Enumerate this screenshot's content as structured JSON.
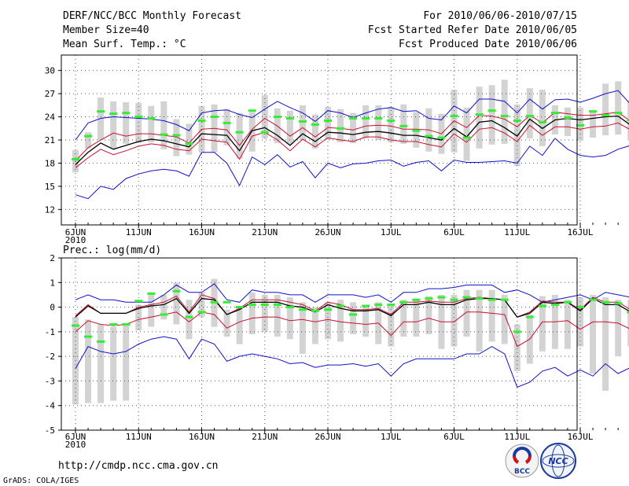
{
  "header": {
    "title": "DERF/NCC/BCC Monthly Forecast",
    "member_size": "Member Size=40",
    "variable1": "Mean Surf. Temp.: °C",
    "period": "For 2010/06/06-2010/07/15",
    "fcst_started": "Fcst Started Refer Date 2010/06/05",
    "fcst_produced": "Fcst Produced Date 2010/06/06"
  },
  "footer": {
    "url": "http://cmdp.ncc.cma.gov.cn",
    "grads": "GrADS: COLA/IGES",
    "logo1_text": "BCC",
    "logo2_text": "NCC"
  },
  "colors": {
    "upper": "#1010cc",
    "lower": "#1010cc",
    "q_upper": "#c8102e",
    "q_lower": "#c8102e",
    "mean": "#000000",
    "box": "#d3d3d3",
    "marker": "#33ee33",
    "grid": "#555555"
  },
  "chart_data": [
    {
      "type": "line",
      "title": "Mean Surf. Temp.: °C",
      "xlabel": "",
      "ylabel": "°C",
      "ylim": [
        10,
        32
      ],
      "yticks": [
        30,
        27,
        24,
        21,
        18,
        15,
        12
      ],
      "xtick_labels": [
        "6JUN",
        "11JUN",
        "16JUN",
        "21JUN",
        "26JUN",
        "1JUL",
        "6JUL",
        "11JUL",
        "16JUL"
      ],
      "xtick_days": [
        1,
        6,
        11,
        16,
        21,
        26,
        31,
        36,
        41
      ],
      "year_label": "2010",
      "series": [
        {
          "name": "upper",
          "values": [
            21,
            23.2,
            23.8,
            24,
            23.9,
            23.8,
            23.7,
            23.5,
            23,
            22.2,
            24.5,
            24.8,
            24.9,
            24.3,
            23.9,
            25,
            26,
            25.2,
            24.5,
            23.4,
            24.8,
            24.5,
            23.9,
            24.5,
            25,
            25.2,
            24.7,
            24.8,
            23.8,
            23.6,
            25.4,
            24.5,
            26.3,
            26.3,
            26,
            24.5,
            26.3,
            25,
            26.2,
            26.3,
            25.9,
            26.4,
            27,
            27.4,
            25.6,
            26.1,
            27.2
          ]
        },
        {
          "name": "q_upper",
          "values": [
            18.3,
            20,
            21,
            21.9,
            21.5,
            21.8,
            21.8,
            21.6,
            21.4,
            20.6,
            22.4,
            22.5,
            22.3,
            20.3,
            22.4,
            23.8,
            22.8,
            21.5,
            22.6,
            21.4,
            22.6,
            22.5,
            22.3,
            22.8,
            22.9,
            22.8,
            22.4,
            22.4,
            22.3,
            21.8,
            23.5,
            22.6,
            24.2,
            24.1,
            23.7,
            22.7,
            24.2,
            23.2,
            24.6,
            24.4,
            24.2,
            24.2,
            24.4,
            24.6,
            23.4,
            24.3,
            25.2
          ]
        },
        {
          "name": "mean",
          "values": [
            17.8,
            19.4,
            20.6,
            19.8,
            20.3,
            20.8,
            21.1,
            20.9,
            20.5,
            20.1,
            21.8,
            21.7,
            21.6,
            19.6,
            22.2,
            22.6,
            21.6,
            20.3,
            21.8,
            20.8,
            22,
            21.9,
            21.7,
            22,
            22.1,
            21.9,
            21.6,
            21.6,
            21.3,
            21,
            22.5,
            21.4,
            23.3,
            23.5,
            22.6,
            21.5,
            23.7,
            22.5,
            23.6,
            23.8,
            23.6,
            23.8,
            24,
            24.1,
            22.9,
            23.6,
            24.4
          ]
        },
        {
          "name": "q_lower",
          "values": [
            17.4,
            18.7,
            19.8,
            19.1,
            19.6,
            20.2,
            20.5,
            20.3,
            19.8,
            19.6,
            21.1,
            20.9,
            20.7,
            18.5,
            21.5,
            22,
            21,
            19.6,
            21.1,
            20.1,
            21.3,
            21,
            20.8,
            21.4,
            21.4,
            21,
            20.8,
            20.8,
            20.4,
            20.1,
            21.8,
            20.7,
            22.4,
            22.6,
            21.9,
            20.8,
            22.9,
            21.6,
            22.7,
            22.7,
            22.4,
            22.7,
            22.8,
            23.2,
            22.3,
            22.8,
            23.7
          ]
        },
        {
          "name": "lower",
          "values": [
            13.9,
            13.4,
            15,
            14.6,
            16,
            16.6,
            17,
            17.2,
            17,
            16.3,
            19.4,
            19.4,
            18,
            15.1,
            18.8,
            17.8,
            19.1,
            17.5,
            18.2,
            16.1,
            18,
            17.4,
            17.9,
            18,
            18.3,
            18.4,
            17.6,
            18.1,
            18.3,
            17,
            18.4,
            18.1,
            18.1,
            18.2,
            18.3,
            18,
            20.2,
            19,
            21.2,
            19.8,
            19,
            18.8,
            19,
            19.8,
            20.3,
            21,
            21.2
          ]
        },
        {
          "name": "box_high",
          "values": [
            19.7,
            22,
            26.5,
            26,
            25.9,
            25.8,
            25.4,
            26,
            23.7,
            23.1,
            25.4,
            25.6,
            25,
            24.5,
            24.6,
            26.8,
            25.1,
            24.8,
            25.5,
            24.3,
            25.3,
            25,
            24.5,
            25.5,
            25.5,
            25.3,
            25.6,
            24.6,
            25.1,
            24.4,
            27.5,
            25.2,
            27.9,
            28.1,
            28.8,
            25.6,
            27.7,
            27.5,
            25.5,
            25.2,
            25.2,
            24.6,
            28.3,
            28.6,
            26.1,
            27,
            28.2
          ]
        },
        {
          "name": "box_low",
          "values": [
            16.8,
            19.9,
            21,
            19.9,
            20.5,
            20.6,
            20.7,
            19.8,
            18.9,
            19.1,
            19.4,
            19.4,
            20.3,
            18.6,
            19.5,
            21.2,
            20.6,
            20.5,
            21,
            19.9,
            21,
            20.7,
            20.6,
            21.2,
            21,
            20.7,
            20.5,
            20,
            19.5,
            19.2,
            19.4,
            18.3,
            19.9,
            20.4,
            20.5,
            17.6,
            21.2,
            20.2,
            21.7,
            21.5,
            20.9,
            21.3,
            21.6,
            21.7,
            20.9,
            21.2,
            21.9
          ]
        },
        {
          "name": "marker",
          "values": [
            18.5,
            21.5,
            24.7,
            24.4,
            24.5,
            24,
            23.8,
            21.7,
            21.6,
            20.5,
            23.5,
            24,
            23.2,
            22,
            24.8,
            22,
            24,
            23.8,
            23.4,
            23,
            23.5,
            22.5,
            23.8,
            23.8,
            23.8,
            23.5,
            22.8,
            22.2,
            21.5,
            21.3,
            24.1,
            21.3,
            24.3,
            24.8,
            24.1,
            23.5,
            24.1,
            23.3,
            24.5,
            23.9,
            22.9,
            24.7,
            24.2,
            24.5,
            23.6,
            24.5,
            25.3
          ]
        }
      ]
    },
    {
      "type": "line",
      "title": "Prec.: log(mm/d)",
      "xlabel": "",
      "ylabel": "log(mm/d)",
      "ylim": [
        -5,
        2
      ],
      "yticks": [
        2,
        1,
        0,
        -1,
        -2,
        -3,
        -4,
        -5
      ],
      "xtick_labels": [
        "6JUN",
        "11JUN",
        "16JUN",
        "21JUN",
        "26JUN",
        "1JUL",
        "6JUL",
        "11JUL",
        "16JUL"
      ],
      "xtick_days": [
        1,
        6,
        11,
        16,
        21,
        26,
        31,
        36,
        41
      ],
      "year_label": "2010",
      "series": [
        {
          "name": "upper",
          "values": [
            0.3,
            0.5,
            0.3,
            0.3,
            0.2,
            0.2,
            0.2,
            0.5,
            0.9,
            0.6,
            0.6,
            0.95,
            0.3,
            0.2,
            0.7,
            0.6,
            0.6,
            0.5,
            0.5,
            0.2,
            0.5,
            0.5,
            0.5,
            0.4,
            0.5,
            0.2,
            0.6,
            0.6,
            0.75,
            0.75,
            0.8,
            0.9,
            0.9,
            0.9,
            0.6,
            0.7,
            0.5,
            0.2,
            0.3,
            0.4,
            0.5,
            0.3,
            0.6,
            0.5,
            0.4,
            0.7,
            0.6
          ]
        },
        {
          "name": "q_upper",
          "values": [
            -0.35,
            0.1,
            -0.25,
            -0.25,
            -0.25,
            0,
            0.1,
            0.2,
            0.45,
            -0.2,
            0.5,
            0.35,
            -0.3,
            -0.05,
            0.3,
            0.3,
            0.3,
            0.2,
            0.1,
            -0.15,
            0.2,
            0.1,
            -0.1,
            -0.1,
            -0.05,
            -0.3,
            0.2,
            0.2,
            0.25,
            0.2,
            0.2,
            0.35,
            0.4,
            0.35,
            0.3,
            -0.4,
            -0.2,
            0.25,
            0.2,
            0.2,
            -0.1,
            0.4,
            0.2,
            0.2,
            -0.1,
            0.2,
            0.15
          ]
        },
        {
          "name": "mean",
          "values": [
            -0.4,
            0.05,
            -0.25,
            -0.25,
            -0.25,
            -0.05,
            0.05,
            0.1,
            0.35,
            -0.25,
            0.35,
            0.3,
            -0.3,
            -0.1,
            0.2,
            0.2,
            0.2,
            0.05,
            0,
            -0.2,
            0.1,
            -0.05,
            -0.15,
            -0.15,
            -0.1,
            -0.35,
            0.1,
            0.1,
            0.2,
            0.1,
            0.1,
            0.3,
            0.35,
            0.35,
            0.3,
            -0.4,
            -0.25,
            0.2,
            0.15,
            0.2,
            -0.15,
            0.35,
            0.1,
            0.1,
            -0.2,
            0.2,
            0.1
          ]
        },
        {
          "name": "q_lower",
          "values": [
            -1,
            -0.55,
            -0.7,
            -0.75,
            -0.7,
            -0.5,
            -0.4,
            -0.3,
            -0.2,
            -0.6,
            -0.2,
            -0.3,
            -0.85,
            -0.6,
            -0.45,
            -0.4,
            -0.4,
            -0.55,
            -0.5,
            -0.6,
            -0.5,
            -0.6,
            -0.65,
            -0.7,
            -0.65,
            -1.15,
            -0.6,
            -0.6,
            -0.45,
            -0.6,
            -0.6,
            -0.2,
            -0.2,
            -0.25,
            -0.3,
            -1.6,
            -1.3,
            -0.6,
            -0.6,
            -0.55,
            -0.9,
            -0.6,
            -0.6,
            -0.65,
            -0.9,
            -0.6,
            -0.65
          ]
        },
        {
          "name": "lower",
          "values": [
            -2.5,
            -1.6,
            -1.8,
            -1.9,
            -1.8,
            -1.5,
            -1.3,
            -1.2,
            -1.3,
            -2.1,
            -1.3,
            -1.5,
            -2.2,
            -2.0,
            -1.9,
            -2.0,
            -2.1,
            -2.3,
            -2.25,
            -2.45,
            -2.35,
            -2.35,
            -2.3,
            -2.4,
            -2.3,
            -2.8,
            -2.3,
            -2.1,
            -2.1,
            -2.1,
            -2.1,
            -1.9,
            -1.9,
            -1.6,
            -1.9,
            -3.25,
            -3.05,
            -2.6,
            -2.45,
            -2.8,
            -2.55,
            -2.8,
            -2.3,
            -2.7,
            -2.45,
            -2.5,
            -2.65
          ]
        },
        {
          "name": "box_high",
          "values": [
            -0.4,
            -0.5,
            -0.7,
            -0.8,
            -0.65,
            0.1,
            0.6,
            0.5,
            1.0,
            0.3,
            0.6,
            1.15,
            -0.1,
            0.05,
            0.6,
            0.5,
            0.5,
            0.4,
            0.2,
            0,
            0.2,
            0.3,
            0.2,
            0.1,
            0.2,
            0.1,
            0.3,
            0.3,
            0.45,
            0.5,
            0.5,
            0.7,
            0.7,
            0.7,
            0.5,
            -0.7,
            -0.3,
            0.45,
            0.5,
            0.3,
            0.4,
            0.5,
            0.4,
            0.3,
            0.3,
            0.95,
            0.7
          ]
        },
        {
          "name": "box_low",
          "values": [
            -3.95,
            -3.9,
            -3.9,
            -3.8,
            -3.8,
            -0.95,
            -0.8,
            -0.5,
            -0.7,
            -1.3,
            -0.4,
            -0.8,
            -1.2,
            -1.5,
            -1.1,
            -1.0,
            -1.2,
            -1.3,
            -1.9,
            -1.5,
            -1.3,
            -1.4,
            -1.1,
            -1.2,
            -1.5,
            -1.6,
            -1.2,
            -1.2,
            -1.1,
            -1.7,
            -1.6,
            -1.2,
            -1.8,
            -1.4,
            -1.5,
            -2.6,
            -2.3,
            -1.8,
            -1.7,
            -1.7,
            -1.6,
            -2.7,
            -3.4,
            -2.0,
            -1.6,
            -1.3,
            -1.7
          ]
        },
        {
          "name": "marker",
          "values": [
            -0.75,
            -1.2,
            -1.4,
            -0.7,
            -0.7,
            0.25,
            0.55,
            -0.3,
            0.65,
            -0.4,
            -0.2,
            0.2,
            0.2,
            0,
            0.1,
            0.1,
            0.1,
            0,
            -0.1,
            -0.15,
            -0.1,
            0.05,
            -0.3,
            0.05,
            0.1,
            0.1,
            0.2,
            0.3,
            0.35,
            0.4,
            0.3,
            0.4,
            0.35,
            0.3,
            0.3,
            -1.0,
            -0.4,
            0.05,
            0.1,
            0.2,
            0,
            0.3,
            0.2,
            0.15,
            -0.2,
            0.3,
            0.3
          ]
        }
      ]
    }
  ]
}
